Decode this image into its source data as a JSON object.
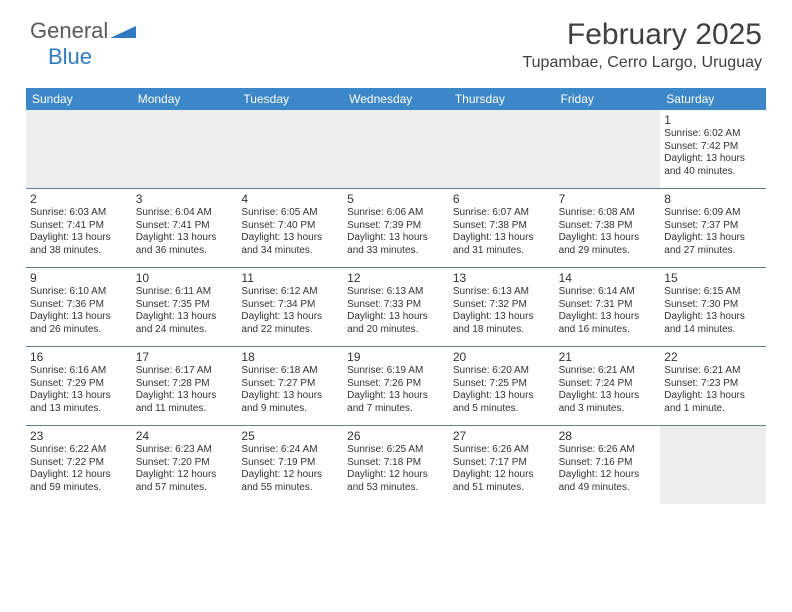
{
  "logo": {
    "text1": "General",
    "text2": "Blue"
  },
  "title": "February 2025",
  "location": "Tupambae, Cerro Largo, Uruguay",
  "colors": {
    "header_bg": "#3b87c8",
    "header_text": "#ffffff",
    "border": "#6b7a8a",
    "blank_bg": "#ededed",
    "text": "#333333",
    "logo_gray": "#5a5a5a",
    "logo_blue": "#2f7bbf"
  },
  "dayHeaders": [
    "Sunday",
    "Monday",
    "Tuesday",
    "Wednesday",
    "Thursday",
    "Friday",
    "Saturday"
  ],
  "weeks": [
    [
      {
        "blank": true
      },
      {
        "blank": true
      },
      {
        "blank": true
      },
      {
        "blank": true
      },
      {
        "blank": true
      },
      {
        "blank": true
      },
      {
        "day": "1",
        "sunrise": "Sunrise: 6:02 AM",
        "sunset": "Sunset: 7:42 PM",
        "daylight1": "Daylight: 13 hours",
        "daylight2": "and 40 minutes."
      }
    ],
    [
      {
        "day": "2",
        "sunrise": "Sunrise: 6:03 AM",
        "sunset": "Sunset: 7:41 PM",
        "daylight1": "Daylight: 13 hours",
        "daylight2": "and 38 minutes."
      },
      {
        "day": "3",
        "sunrise": "Sunrise: 6:04 AM",
        "sunset": "Sunset: 7:41 PM",
        "daylight1": "Daylight: 13 hours",
        "daylight2": "and 36 minutes."
      },
      {
        "day": "4",
        "sunrise": "Sunrise: 6:05 AM",
        "sunset": "Sunset: 7:40 PM",
        "daylight1": "Daylight: 13 hours",
        "daylight2": "and 34 minutes."
      },
      {
        "day": "5",
        "sunrise": "Sunrise: 6:06 AM",
        "sunset": "Sunset: 7:39 PM",
        "daylight1": "Daylight: 13 hours",
        "daylight2": "and 33 minutes."
      },
      {
        "day": "6",
        "sunrise": "Sunrise: 6:07 AM",
        "sunset": "Sunset: 7:38 PM",
        "daylight1": "Daylight: 13 hours",
        "daylight2": "and 31 minutes."
      },
      {
        "day": "7",
        "sunrise": "Sunrise: 6:08 AM",
        "sunset": "Sunset: 7:38 PM",
        "daylight1": "Daylight: 13 hours",
        "daylight2": "and 29 minutes."
      },
      {
        "day": "8",
        "sunrise": "Sunrise: 6:09 AM",
        "sunset": "Sunset: 7:37 PM",
        "daylight1": "Daylight: 13 hours",
        "daylight2": "and 27 minutes."
      }
    ],
    [
      {
        "day": "9",
        "sunrise": "Sunrise: 6:10 AM",
        "sunset": "Sunset: 7:36 PM",
        "daylight1": "Daylight: 13 hours",
        "daylight2": "and 26 minutes."
      },
      {
        "day": "10",
        "sunrise": "Sunrise: 6:11 AM",
        "sunset": "Sunset: 7:35 PM",
        "daylight1": "Daylight: 13 hours",
        "daylight2": "and 24 minutes."
      },
      {
        "day": "11",
        "sunrise": "Sunrise: 6:12 AM",
        "sunset": "Sunset: 7:34 PM",
        "daylight1": "Daylight: 13 hours",
        "daylight2": "and 22 minutes."
      },
      {
        "day": "12",
        "sunrise": "Sunrise: 6:13 AM",
        "sunset": "Sunset: 7:33 PM",
        "daylight1": "Daylight: 13 hours",
        "daylight2": "and 20 minutes."
      },
      {
        "day": "13",
        "sunrise": "Sunrise: 6:13 AM",
        "sunset": "Sunset: 7:32 PM",
        "daylight1": "Daylight: 13 hours",
        "daylight2": "and 18 minutes."
      },
      {
        "day": "14",
        "sunrise": "Sunrise: 6:14 AM",
        "sunset": "Sunset: 7:31 PM",
        "daylight1": "Daylight: 13 hours",
        "daylight2": "and 16 minutes."
      },
      {
        "day": "15",
        "sunrise": "Sunrise: 6:15 AM",
        "sunset": "Sunset: 7:30 PM",
        "daylight1": "Daylight: 13 hours",
        "daylight2": "and 14 minutes."
      }
    ],
    [
      {
        "day": "16",
        "sunrise": "Sunrise: 6:16 AM",
        "sunset": "Sunset: 7:29 PM",
        "daylight1": "Daylight: 13 hours",
        "daylight2": "and 13 minutes."
      },
      {
        "day": "17",
        "sunrise": "Sunrise: 6:17 AM",
        "sunset": "Sunset: 7:28 PM",
        "daylight1": "Daylight: 13 hours",
        "daylight2": "and 11 minutes."
      },
      {
        "day": "18",
        "sunrise": "Sunrise: 6:18 AM",
        "sunset": "Sunset: 7:27 PM",
        "daylight1": "Daylight: 13 hours",
        "daylight2": "and 9 minutes."
      },
      {
        "day": "19",
        "sunrise": "Sunrise: 6:19 AM",
        "sunset": "Sunset: 7:26 PM",
        "daylight1": "Daylight: 13 hours",
        "daylight2": "and 7 minutes."
      },
      {
        "day": "20",
        "sunrise": "Sunrise: 6:20 AM",
        "sunset": "Sunset: 7:25 PM",
        "daylight1": "Daylight: 13 hours",
        "daylight2": "and 5 minutes."
      },
      {
        "day": "21",
        "sunrise": "Sunrise: 6:21 AM",
        "sunset": "Sunset: 7:24 PM",
        "daylight1": "Daylight: 13 hours",
        "daylight2": "and 3 minutes."
      },
      {
        "day": "22",
        "sunrise": "Sunrise: 6:21 AM",
        "sunset": "Sunset: 7:23 PM",
        "daylight1": "Daylight: 13 hours",
        "daylight2": "and 1 minute."
      }
    ],
    [
      {
        "day": "23",
        "sunrise": "Sunrise: 6:22 AM",
        "sunset": "Sunset: 7:22 PM",
        "daylight1": "Daylight: 12 hours",
        "daylight2": "and 59 minutes."
      },
      {
        "day": "24",
        "sunrise": "Sunrise: 6:23 AM",
        "sunset": "Sunset: 7:20 PM",
        "daylight1": "Daylight: 12 hours",
        "daylight2": "and 57 minutes."
      },
      {
        "day": "25",
        "sunrise": "Sunrise: 6:24 AM",
        "sunset": "Sunset: 7:19 PM",
        "daylight1": "Daylight: 12 hours",
        "daylight2": "and 55 minutes."
      },
      {
        "day": "26",
        "sunrise": "Sunrise: 6:25 AM",
        "sunset": "Sunset: 7:18 PM",
        "daylight1": "Daylight: 12 hours",
        "daylight2": "and 53 minutes."
      },
      {
        "day": "27",
        "sunrise": "Sunrise: 6:26 AM",
        "sunset": "Sunset: 7:17 PM",
        "daylight1": "Daylight: 12 hours",
        "daylight2": "and 51 minutes."
      },
      {
        "day": "28",
        "sunrise": "Sunrise: 6:26 AM",
        "sunset": "Sunset: 7:16 PM",
        "daylight1": "Daylight: 12 hours",
        "daylight2": "and 49 minutes."
      },
      {
        "blank": true
      }
    ]
  ]
}
